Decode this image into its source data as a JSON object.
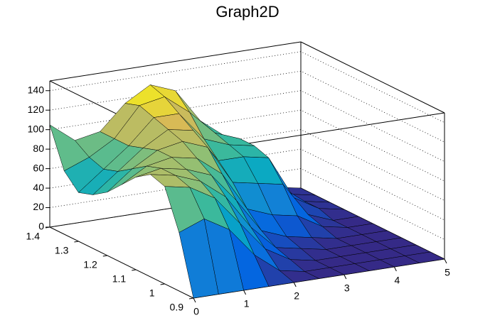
{
  "chart_data": {
    "type": "surface",
    "title": "Graph2D",
    "x": [
      0,
      0.5,
      1,
      1.5,
      2,
      2.5,
      3,
      3.5,
      4,
      4.5,
      5
    ],
    "y": [
      0.9,
      0.95,
      1,
      1.05,
      1.1,
      1.15,
      1.2,
      1.25,
      1.3,
      1.35,
      1.4
    ],
    "z": [
      [
        0,
        0,
        0,
        0,
        0,
        0,
        0,
        0,
        0,
        0,
        0
      ],
      [
        60,
        70,
        55,
        25,
        5,
        0,
        0,
        0,
        0,
        0,
        0
      ],
      [
        100,
        95,
        80,
        50,
        20,
        5,
        0,
        0,
        0,
        0,
        0
      ],
      [
        105,
        100,
        90,
        70,
        35,
        10,
        5,
        0,
        0,
        0,
        0
      ],
      [
        95,
        100,
        95,
        85,
        55,
        20,
        10,
        5,
        0,
        0,
        0
      ],
      [
        80,
        95,
        100,
        95,
        75,
        35,
        25,
        20,
        5,
        0,
        0
      ],
      [
        65,
        85,
        100,
        105,
        95,
        55,
        50,
        45,
        10,
        0,
        0
      ],
      [
        55,
        75,
        95,
        110,
        105,
        70,
        70,
        65,
        20,
        5,
        0
      ],
      [
        50,
        70,
        90,
        115,
        115,
        85,
        75,
        70,
        25,
        5,
        0
      ],
      [
        65,
        75,
        90,
        120,
        125,
        105,
        80,
        70,
        25,
        5,
        0
      ],
      [
        105,
        85,
        90,
        115,
        130,
        120,
        85,
        65,
        20,
        5,
        0
      ]
    ],
    "xlim": [
      0,
      5
    ],
    "xticks": [
      0,
      1,
      2,
      3,
      4,
      5
    ],
    "ylim": [
      0.9,
      1.4
    ],
    "yticks": [
      0.9,
      1,
      1.1,
      1.2,
      1.3,
      1.4
    ],
    "zlim": [
      0,
      150
    ],
    "zticks": [
      0,
      20,
      40,
      60,
      80,
      100,
      120,
      140
    ],
    "grid": true,
    "colorscale": [
      "#352a87",
      "#0363e1",
      "#1485d4",
      "#06a7c6",
      "#38b99e",
      "#92bf73",
      "#d9ba56",
      "#f9fb0e"
    ]
  }
}
